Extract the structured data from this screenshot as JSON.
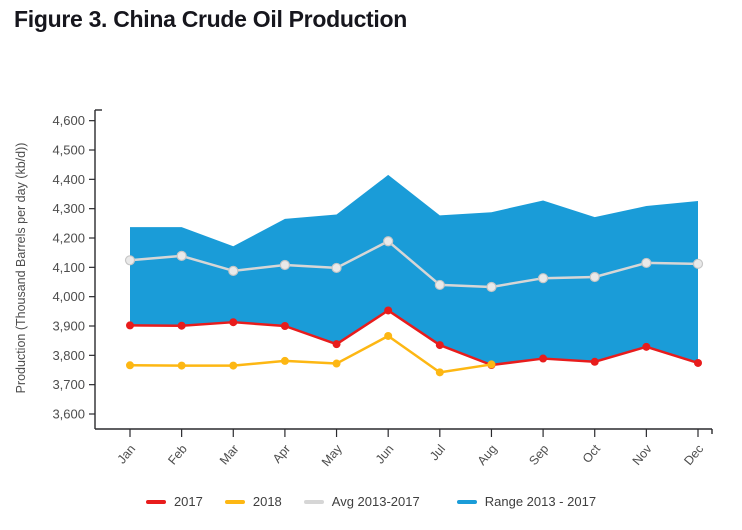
{
  "title": "Figure 3. China Crude Oil Production",
  "colors": {
    "background": "#ffffff",
    "axis": "#2a2a2e",
    "tick_label": "#4d4d4d",
    "title": "#16161d",
    "legend_label": "#3f3f3f"
  },
  "chart_data": {
    "type": "line",
    "title": "Figure 3. China Crude Oil Production",
    "categories": [
      "Jan",
      "Feb",
      "Mar",
      "Apr",
      "May",
      "Jun",
      "Jul",
      "Aug",
      "Sep",
      "Oct",
      "Nov",
      "Dec"
    ],
    "series": [
      {
        "name": "2017",
        "type": "line",
        "color": "#e81c1c",
        "z": 2,
        "values": [
          3902,
          3901,
          3913,
          3900,
          3838,
          3953,
          3835,
          3767,
          3789,
          3778,
          3829,
          3774
        ]
      },
      {
        "name": "2018",
        "type": "line",
        "color": "#fdb713",
        "z": 3,
        "values": [
          3766,
          3765,
          3765,
          3781,
          3772,
          3866,
          3742,
          3769
        ]
      },
      {
        "name": "Avg 2013-2017",
        "type": "line",
        "color": "#d6d6d6",
        "marker_fill": "#e9e9e9",
        "marker_stroke": "#c6c6c6",
        "z": 1,
        "values": [
          4124,
          4139,
          4088,
          4108,
          4098,
          4189,
          4040,
          4033,
          4063,
          4067,
          4115,
          4112
        ]
      },
      {
        "name": "Range 2013 - 2017",
        "type": "band",
        "color": "#1a9cd8",
        "z": 0,
        "max": [
          4237,
          4237,
          4172,
          4265,
          4280,
          4415,
          4277,
          4288,
          4328,
          4271,
          4309,
          4326
        ],
        "min": [
          3902,
          3901,
          3913,
          3900,
          3838,
          3953,
          3835,
          3767,
          3789,
          3778,
          3829,
          3774
        ]
      }
    ],
    "xlabel": "",
    "ylabel": "Production (Thousand Barrels per day (kb/d))",
    "ylim": [
      3600,
      4600
    ],
    "ytick_step": 100,
    "ytick_labels": [
      "3,600",
      "3,700",
      "3,800",
      "3,900",
      "4,000",
      "4,100",
      "4,200",
      "4,300",
      "4,400",
      "4,500",
      "4,600"
    ],
    "grid": false,
    "legend_position": "bottom"
  }
}
